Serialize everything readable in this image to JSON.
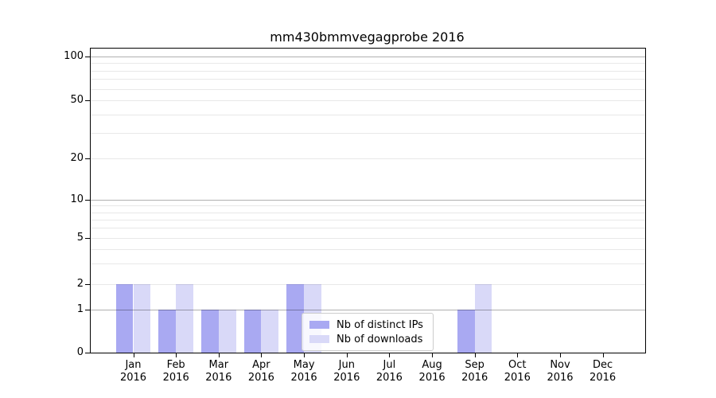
{
  "title": "mm430bmmvegagprobe 2016",
  "colors": {
    "distinct_ips": "#a9a9f2",
    "downloads": "#d9d9f8",
    "grid_major": "#b0b0b0",
    "grid_minor": "#e8e8e8",
    "spine": "#000000",
    "background": "#ffffff",
    "legend_border": "#cccccc"
  },
  "chart_data": {
    "type": "bar",
    "title": "mm430bmmvegagprobe 2016",
    "year": "2016",
    "month_labels": [
      "Jan",
      "Feb",
      "Mar",
      "Apr",
      "May",
      "Jun",
      "Jul",
      "Aug",
      "Sep",
      "Oct",
      "Nov",
      "Dec"
    ],
    "categories": [
      "Jan 2016",
      "Feb 2016",
      "Mar 2016",
      "Apr 2016",
      "May 2016",
      "Jun 2016",
      "Jul 2016",
      "Aug 2016",
      "Sep 2016",
      "Oct 2016",
      "Nov 2016",
      "Dec 2016"
    ],
    "series": [
      {
        "name": "Nb of distinct IPs",
        "color_key": "distinct_ips",
        "values": [
          2,
          1,
          1,
          1,
          2,
          0,
          0,
          0,
          1,
          0,
          0,
          0
        ]
      },
      {
        "name": "Nb of downloads",
        "color_key": "downloads",
        "values": [
          2,
          2,
          1,
          1,
          2,
          0,
          0,
          0,
          2,
          0,
          0,
          0
        ]
      }
    ],
    "yscale": "log",
    "ylim": [
      0,
      120
    ],
    "yticks": [
      100,
      50,
      20,
      10,
      5,
      2,
      1,
      0
    ],
    "grid": "both",
    "legend_position": "lower center-right, inside axes"
  }
}
